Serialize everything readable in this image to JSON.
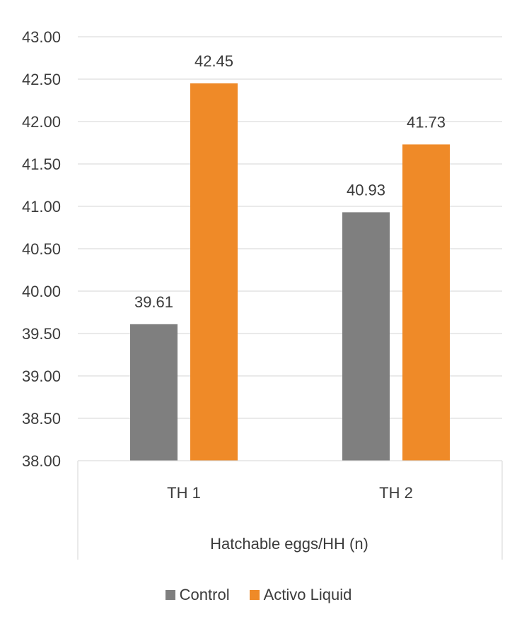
{
  "colors": {
    "control": "#7f7f7f",
    "activo": "#ef8a28",
    "grid": "#d6d6d6",
    "text": "#3b3b3b"
  },
  "chart_data": {
    "type": "bar",
    "title": "",
    "ylabel": "",
    "xlabel": "Hatchable eggs/HH (n)",
    "categories": [
      "TH 1",
      "TH 2"
    ],
    "series": [
      {
        "name": "Control",
        "values": [
          39.61,
          40.93
        ],
        "labels": [
          "39.61",
          "40.93"
        ]
      },
      {
        "name": "Activo Liquid",
        "values": [
          42.45,
          41.73
        ],
        "labels": [
          "42.45",
          "41.73"
        ]
      }
    ],
    "ylim": [
      38.0,
      43.0
    ],
    "yticks": [
      "38.00",
      "38.50",
      "39.00",
      "39.50",
      "40.00",
      "40.50",
      "41.00",
      "41.50",
      "42.00",
      "42.50",
      "43.00"
    ],
    "grid": true,
    "legend_position": "bottom"
  }
}
